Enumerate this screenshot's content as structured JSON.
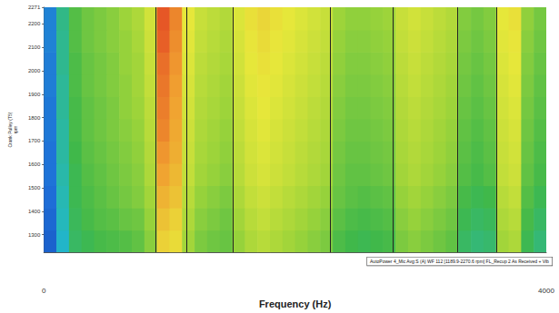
{
  "chart_data": {
    "type": "heatmap",
    "xlabel": "Frequency (Hz)",
    "ylabel": [
      "Crank Pulley (T5)",
      "rpm"
    ],
    "xlim": [
      0,
      4000
    ],
    "xticks": [
      0,
      4000
    ],
    "ylim": [
      1225,
      2271
    ],
    "yticks": [
      1300,
      1400,
      1500,
      1600,
      1700,
      1800,
      1900,
      2000,
      2100,
      2200,
      2271
    ],
    "grid": false,
    "annotations": [
      "AutoPower 4_Mic Avg:S (A) WF 112 [1189.9-2270.6 rpm] FL_Recup 2 As Received + Vib"
    ],
    "vlines": [
      889,
      1136,
      1503,
      2279,
      2780,
      3295,
      3605
    ],
    "x_bins": [
      0,
      100,
      200,
      300,
      400,
      500,
      600,
      700,
      800,
      900,
      1000,
      1100,
      1200,
      1300,
      1400,
      1500,
      1600,
      1700,
      1800,
      1900,
      2000,
      2100,
      2200,
      2300,
      2400,
      2500,
      2600,
      2700,
      2800,
      2900,
      3000,
      3100,
      3200,
      3300,
      3400,
      3500,
      3600,
      3700,
      3800,
      3900,
      4000
    ],
    "y_bins": [
      1225,
      1320,
      1415,
      1510,
      1605,
      1700,
      1795,
      1890,
      1985,
      2080,
      2175,
      2271
    ],
    "zlim": [
      0,
      10
    ],
    "cells": [
      [
        1.2,
        2.8,
        4.0,
        4.2,
        4.4,
        4.5,
        4.6,
        4.8,
        5.4,
        7.6,
        7.4,
        5.8,
        5.2,
        5.0,
        4.9,
        5.6,
        6.0,
        6.2,
        6.0,
        5.8,
        5.6,
        5.4,
        5.2,
        4.5,
        4.3,
        4.2,
        4.3,
        4.4,
        5.2,
        5.4,
        5.2,
        5.0,
        4.8,
        4.0,
        3.8,
        3.9,
        5.8,
        6.0,
        4.2,
        3.8
      ],
      [
        1.3,
        3.0,
        4.1,
        4.4,
        4.6,
        4.7,
        4.9,
        5.0,
        5.6,
        7.9,
        7.6,
        6.0,
        5.4,
        5.2,
        5.0,
        5.8,
        6.2,
        6.4,
        6.2,
        6.0,
        5.8,
        5.6,
        5.4,
        4.7,
        4.5,
        4.4,
        4.5,
        4.6,
        5.4,
        5.6,
        5.4,
        5.2,
        5.0,
        4.2,
        4.0,
        4.1,
        6.0,
        6.2,
        4.4,
        4.0
      ],
      [
        1.4,
        3.1,
        4.2,
        4.5,
        4.7,
        4.9,
        5.1,
        5.3,
        5.8,
        8.2,
        7.9,
        6.2,
        5.6,
        5.4,
        5.2,
        6.0,
        6.4,
        6.6,
        6.4,
        6.2,
        6.0,
        5.8,
        5.6,
        4.9,
        4.7,
        4.6,
        4.7,
        4.8,
        5.6,
        5.8,
        5.6,
        5.4,
        5.2,
        4.4,
        4.2,
        4.3,
        6.2,
        6.4,
        4.6,
        4.2
      ],
      [
        1.5,
        3.2,
        4.2,
        4.6,
        4.8,
        5.0,
        5.2,
        5.4,
        6.0,
        8.5,
        8.1,
        6.4,
        5.8,
        5.6,
        5.4,
        6.2,
        6.6,
        6.8,
        6.6,
        6.4,
        6.2,
        6.0,
        5.8,
        5.0,
        4.8,
        4.8,
        4.9,
        5.0,
        5.8,
        6.0,
        5.8,
        5.6,
        5.4,
        4.6,
        4.4,
        4.6,
        6.4,
        6.6,
        4.8,
        4.4
      ],
      [
        1.5,
        3.3,
        4.3,
        4.7,
        4.9,
        5.1,
        5.3,
        5.5,
        6.1,
        8.7,
        8.3,
        6.5,
        5.9,
        5.7,
        5.5,
        6.3,
        6.7,
        6.9,
        6.7,
        6.5,
        6.3,
        6.1,
        5.9,
        5.1,
        4.9,
        4.9,
        5.0,
        5.1,
        5.9,
        6.1,
        5.9,
        5.7,
        5.5,
        4.7,
        4.5,
        4.7,
        6.5,
        6.7,
        4.9,
        4.5
      ],
      [
        1.6,
        3.3,
        4.4,
        4.8,
        5.0,
        5.2,
        5.4,
        5.6,
        6.2,
        8.9,
        8.4,
        6.6,
        6.0,
        5.8,
        5.6,
        6.4,
        6.8,
        7.0,
        6.8,
        6.6,
        6.4,
        6.2,
        6.0,
        5.2,
        5.0,
        5.0,
        5.1,
        5.2,
        6.0,
        6.2,
        6.0,
        5.8,
        5.6,
        4.8,
        4.6,
        4.8,
        6.6,
        6.8,
        5.0,
        4.6
      ],
      [
        1.6,
        3.4,
        4.4,
        4.8,
        5.0,
        5.2,
        5.5,
        5.7,
        6.3,
        9.0,
        8.5,
        6.7,
        6.1,
        5.9,
        5.7,
        6.5,
        6.9,
        7.1,
        6.9,
        6.7,
        6.5,
        6.3,
        6.1,
        5.3,
        5.1,
        5.1,
        5.2,
        5.3,
        6.1,
        6.3,
        6.1,
        5.9,
        5.7,
        4.9,
        4.7,
        4.9,
        6.7,
        6.9,
        5.1,
        4.7
      ],
      [
        1.7,
        3.4,
        4.5,
        4.9,
        5.1,
        5.3,
        5.5,
        5.8,
        6.4,
        9.1,
        8.6,
        6.8,
        6.2,
        6.0,
        5.8,
        6.6,
        7.0,
        7.2,
        7.0,
        6.8,
        6.6,
        6.4,
        6.2,
        5.4,
        5.2,
        5.2,
        5.3,
        5.4,
        6.2,
        6.4,
        6.2,
        6.0,
        5.8,
        5.0,
        4.8,
        5.0,
        6.8,
        7.0,
        5.2,
        4.8
      ],
      [
        1.7,
        3.5,
        4.5,
        4.9,
        5.1,
        5.3,
        5.6,
        5.8,
        6.5,
        9.2,
        8.7,
        6.9,
        6.3,
        6.1,
        5.9,
        6.7,
        7.1,
        7.3,
        7.1,
        6.9,
        6.7,
        6.5,
        6.3,
        5.5,
        5.3,
        5.3,
        5.4,
        5.5,
        6.3,
        6.5,
        6.3,
        6.1,
        5.9,
        5.1,
        4.9,
        5.1,
        6.9,
        7.1,
        5.3,
        4.9
      ],
      [
        1.8,
        3.5,
        4.6,
        5.0,
        5.2,
        5.4,
        5.6,
        5.9,
        6.6,
        9.4,
        8.8,
        7.0,
        6.4,
        6.2,
        6.0,
        6.8,
        7.2,
        7.4,
        7.2,
        7.0,
        6.8,
        6.6,
        6.4,
        5.6,
        5.4,
        5.4,
        5.5,
        5.6,
        6.4,
        6.6,
        6.4,
        6.2,
        6.0,
        5.2,
        5.0,
        5.2,
        7.0,
        7.2,
        5.4,
        5.0
      ],
      [
        1.8,
        3.6,
        4.6,
        5.0,
        5.2,
        5.4,
        5.7,
        6.0,
        6.7,
        9.5,
        8.9,
        7.1,
        6.5,
        6.3,
        6.1,
        6.9,
        7.3,
        7.5,
        7.3,
        7.1,
        6.9,
        6.7,
        6.5,
        5.7,
        5.5,
        5.5,
        5.6,
        5.7,
        6.5,
        6.7,
        6.5,
        6.3,
        6.1,
        5.3,
        5.1,
        5.3,
        7.1,
        7.3,
        5.5,
        5.1
      ]
    ]
  }
}
